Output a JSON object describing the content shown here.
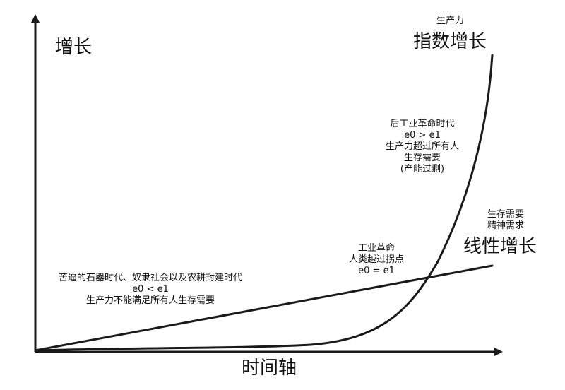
{
  "axes": {
    "y_label": "增长",
    "x_label": "时间轴"
  },
  "exponential": {
    "top_note": "生产力",
    "title": "指数增长",
    "post_industrial_notes": [
      "后工业革命时代",
      "e0 > e1",
      "生产力超过所有人",
      "生存需要",
      "(产能过剩)"
    ]
  },
  "linear": {
    "title": "线性增长",
    "top_notes": [
      "生存需要",
      "精神需求"
    ]
  },
  "industrial_revolution": {
    "notes": [
      "工业革命",
      "人类越过拐点",
      "e0 = e1"
    ]
  },
  "pre_industrial": {
    "notes": [
      "苦逼的石器时代、奴隶社会以及农耕封建时代",
      "e0 < e1",
      "生产力不能满足所有人生存需要"
    ]
  },
  "colors": {
    "ink": "#1a1a1a",
    "background": "#ffffff"
  }
}
